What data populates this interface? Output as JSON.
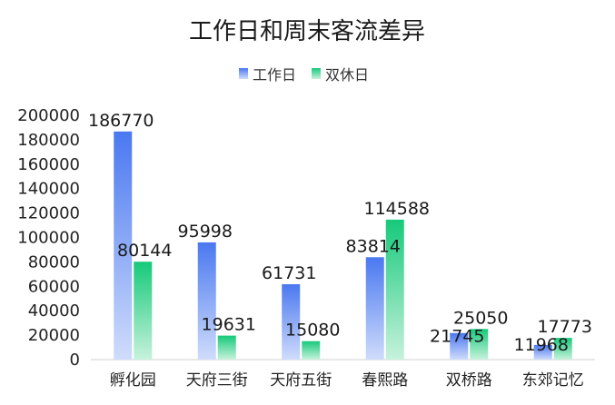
{
  "chart_data": {
    "type": "bar",
    "title": "工作日和周末客流差异",
    "categories": [
      "孵化园",
      "天府三街",
      "天府五街",
      "春熙路",
      "双桥路",
      "东郊记忆"
    ],
    "series": [
      {
        "name": "工作日",
        "values": [
          186770,
          95998,
          61731,
          83814,
          21745,
          11968
        ],
        "color": "#4f7ff2"
      },
      {
        "name": "双休日",
        "values": [
          80144,
          19631,
          15080,
          114588,
          25050,
          17773
        ],
        "color": "#1fcf82"
      }
    ],
    "ylim": [
      0,
      200000
    ],
    "yticks": [
      "0",
      "20000",
      "40000",
      "60000",
      "80000",
      "100000",
      "120000",
      "140000",
      "160000",
      "180000",
      "200000"
    ],
    "grid": false,
    "legend": "top-center",
    "xlabel": "",
    "ylabel": ""
  }
}
